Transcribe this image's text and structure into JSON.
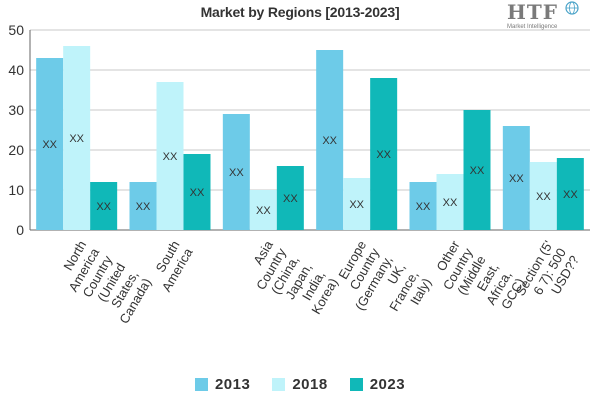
{
  "page": {
    "logo_text": "HTF",
    "logo_subtext": "Market Intelligence"
  },
  "chart_data": {
    "type": "bar",
    "title": "Market by Regions [2013-2023]",
    "xlabel": "",
    "ylabel": "",
    "ylim": [
      0,
      50
    ],
    "yticks": [
      0,
      10,
      20,
      30,
      40,
      50
    ],
    "grid": true,
    "legend_position": "bottom",
    "categories": [
      "North America Country (United States, Canada)",
      "South America",
      "Asia Country (China, Japan, India, Korea)",
      "Europe Country (Germany, UK, France, Italy)",
      "Other Country (Middle East, Africa, GCC)",
      "Section (5' 6 7): 500 USD??"
    ],
    "category_label_lines": [
      [
        "North",
        "America",
        "Country",
        "(United",
        "States,",
        "Canada)"
      ],
      [
        "South",
        "America"
      ],
      [
        "Asia",
        "Country",
        "(China,",
        "Japan,",
        "India,",
        "Korea)"
      ],
      [
        "Europe",
        "Country",
        "(Germany,",
        "UK,",
        "France,",
        "Italy)"
      ],
      [
        "Other",
        "Country",
        "(Middle",
        "East,",
        "Africa,",
        "GCC)"
      ],
      [
        "Section (5'",
        "6 7): 500",
        "USD??"
      ]
    ],
    "series": [
      {
        "name": "2013",
        "color": "#6dcbe8",
        "values": [
          43,
          12,
          29,
          45,
          12,
          26
        ],
        "labels": [
          "XX",
          "XX",
          "XX",
          "XX",
          "XX",
          "XX"
        ]
      },
      {
        "name": "2018",
        "color": "#bff3fa",
        "values": [
          46,
          37,
          10,
          13,
          14,
          17
        ],
        "labels": [
          "XX",
          "XX",
          "XX",
          "XX",
          "XX",
          "XX"
        ]
      },
      {
        "name": "2023",
        "color": "#10b8b8",
        "values": [
          12,
          19,
          16,
          38,
          30,
          18
        ],
        "labels": [
          "XX",
          "XX",
          "XX",
          "XX",
          "XX",
          "XX"
        ]
      }
    ]
  }
}
